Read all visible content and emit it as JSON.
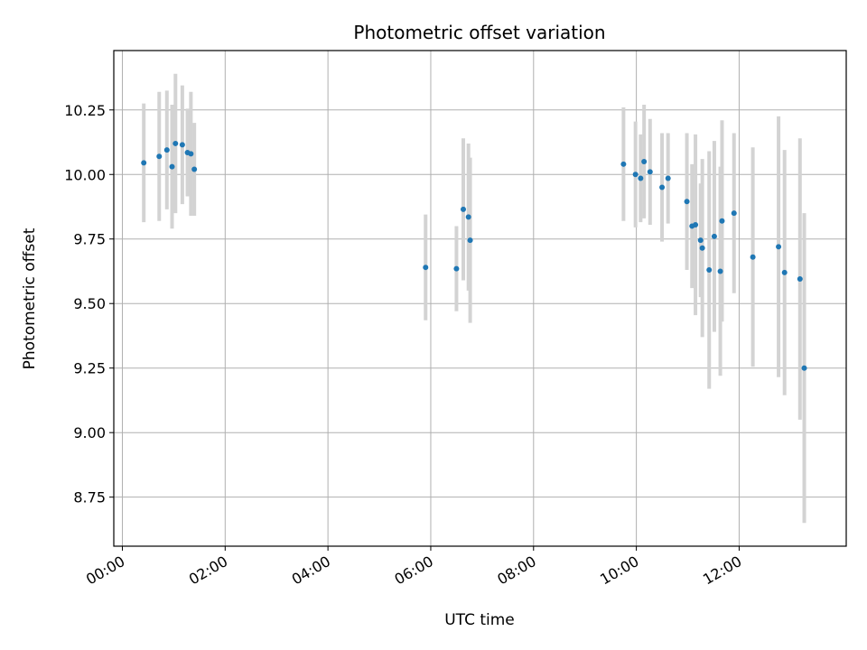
{
  "chart_data": {
    "type": "scatter",
    "title": "Photometric offset variation",
    "xlabel": "UTC time",
    "ylabel": "Photometric offset",
    "grid": true,
    "xlim": [
      "23:50",
      "14:05"
    ],
    "ylim": [
      8.56,
      10.48
    ],
    "x_ticks": [
      "00:00",
      "02:00",
      "04:00",
      "06:00",
      "08:00",
      "10:00",
      "12:00"
    ],
    "y_ticks": [
      "8.75",
      "9.00",
      "9.25",
      "9.50",
      "9.75",
      "10.00",
      "10.25"
    ],
    "colors": {
      "point": "#1f77b4",
      "errorbar": "#d3d3d3",
      "grid": "#b0b0b0"
    },
    "series": [
      {
        "points": [
          {
            "x": "00:25",
            "y": 10.045,
            "yerr": 0.23
          },
          {
            "x": "00:43",
            "y": 10.07,
            "yerr": 0.25
          },
          {
            "x": "00:52",
            "y": 10.095,
            "yerr": 0.23
          },
          {
            "x": "00:58",
            "y": 10.03,
            "yerr": 0.24
          },
          {
            "x": "01:02",
            "y": 10.12,
            "yerr": 0.27
          },
          {
            "x": "01:10",
            "y": 10.115,
            "yerr": 0.23
          },
          {
            "x": "01:16",
            "y": 10.085,
            "yerr": 0.17
          },
          {
            "x": "01:20",
            "y": 10.08,
            "yerr": 0.24
          },
          {
            "x": "01:24",
            "y": 10.02,
            "yerr": 0.18
          },
          {
            "x": "05:54",
            "y": 9.64,
            "yerr": 0.205
          },
          {
            "x": "06:30",
            "y": 9.635,
            "yerr": 0.165
          },
          {
            "x": "06:38",
            "y": 9.865,
            "yerr": 0.275
          },
          {
            "x": "06:44",
            "y": 9.835,
            "yerr": 0.285
          },
          {
            "x": "06:46",
            "y": 9.745,
            "yerr": 0.32
          },
          {
            "x": "09:45",
            "y": 10.04,
            "yerr": 0.22
          },
          {
            "x": "09:59",
            "y": 10.0,
            "yerr": 0.205
          },
          {
            "x": "10:05",
            "y": 9.985,
            "yerr": 0.17
          },
          {
            "x": "10:09",
            "y": 10.05,
            "yerr": 0.22
          },
          {
            "x": "10:16",
            "y": 10.01,
            "yerr": 0.205
          },
          {
            "x": "10:30",
            "y": 9.95,
            "yerr": 0.21
          },
          {
            "x": "10:37",
            "y": 9.985,
            "yerr": 0.175
          },
          {
            "x": "10:59",
            "y": 9.895,
            "yerr": 0.265
          },
          {
            "x": "11:05",
            "y": 9.8,
            "yerr": 0.24
          },
          {
            "x": "11:09",
            "y": 9.805,
            "yerr": 0.35
          },
          {
            "x": "11:15",
            "y": 9.745,
            "yerr": 0.22
          },
          {
            "x": "11:17",
            "y": 9.715,
            "yerr": 0.345
          },
          {
            "x": "11:25",
            "y": 9.63,
            "yerr": 0.46
          },
          {
            "x": "11:31",
            "y": 9.76,
            "yerr": 0.37
          },
          {
            "x": "11:38",
            "y": 9.625,
            "yerr": 0.405
          },
          {
            "x": "11:40",
            "y": 9.82,
            "yerr": 0.39
          },
          {
            "x": "11:54",
            "y": 9.85,
            "yerr": 0.31
          },
          {
            "x": "12:16",
            "y": 9.68,
            "yerr": 0.425
          },
          {
            "x": "12:46",
            "y": 9.72,
            "yerr": 0.505
          },
          {
            "x": "12:53",
            "y": 9.62,
            "yerr": 0.475
          },
          {
            "x": "13:11",
            "y": 9.595,
            "yerr": 0.545
          },
          {
            "x": "13:16",
            "y": 9.25,
            "yerr": 0.6
          }
        ]
      }
    ]
  }
}
